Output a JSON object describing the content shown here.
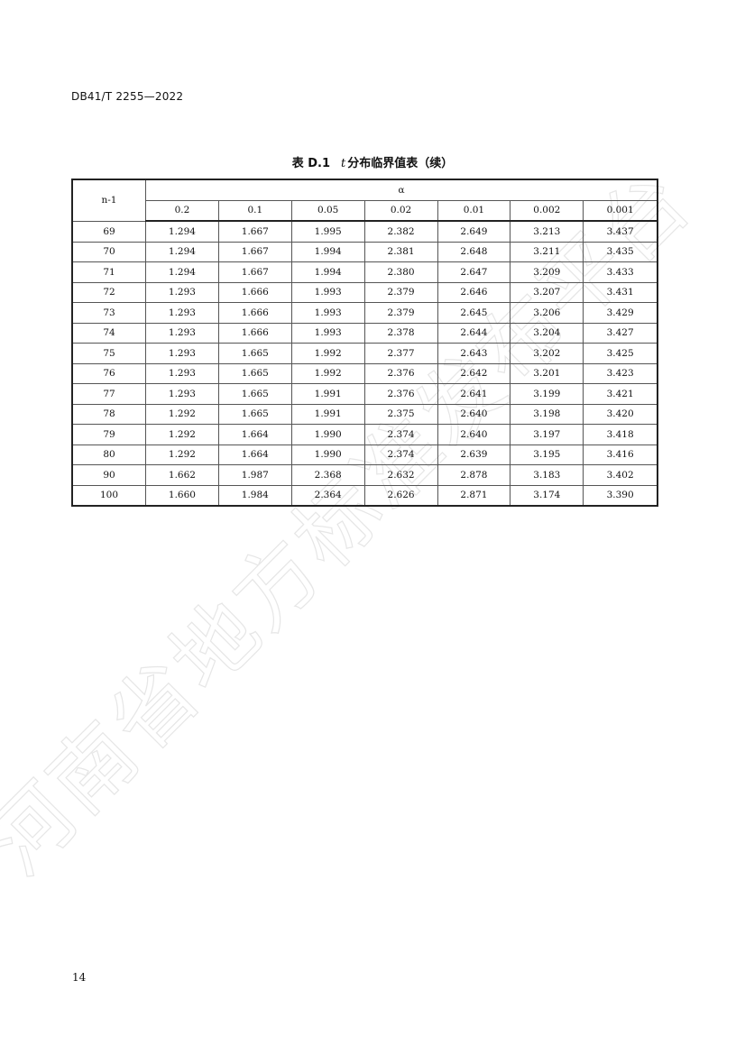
{
  "header": {
    "doc_code": "DB41/T 2255—2022"
  },
  "table": {
    "title_prefix": "表 D.1",
    "title_symbol": "t",
    "title_text": "分布临界值表（续）",
    "row_header": "n-1",
    "group_header": "α",
    "columns": [
      "0.2",
      "0.1",
      "0.05",
      "0.02",
      "0.01",
      "0.002",
      "0.001"
    ],
    "rows": [
      {
        "n": "69",
        "v": [
          "1.294",
          "1.667",
          "1.995",
          "2.382",
          "2.649",
          "3.213",
          "3.437"
        ]
      },
      {
        "n": "70",
        "v": [
          "1.294",
          "1.667",
          "1.994",
          "2.381",
          "2.648",
          "3.211",
          "3.435"
        ]
      },
      {
        "n": "71",
        "v": [
          "1.294",
          "1.667",
          "1.994",
          "2.380",
          "2.647",
          "3.209",
          "3.433"
        ]
      },
      {
        "n": "72",
        "v": [
          "1.293",
          "1.666",
          "1.993",
          "2.379",
          "2.646",
          "3.207",
          "3.431"
        ]
      },
      {
        "n": "73",
        "v": [
          "1.293",
          "1.666",
          "1.993",
          "2.379",
          "2.645",
          "3.206",
          "3.429"
        ]
      },
      {
        "n": "74",
        "v": [
          "1.293",
          "1.666",
          "1.993",
          "2.378",
          "2.644",
          "3.204",
          "3.427"
        ]
      },
      {
        "n": "75",
        "v": [
          "1.293",
          "1.665",
          "1.992",
          "2.377",
          "2.643",
          "3.202",
          "3.425"
        ]
      },
      {
        "n": "76",
        "v": [
          "1.293",
          "1.665",
          "1.992",
          "2.376",
          "2.642",
          "3.201",
          "3.423"
        ]
      },
      {
        "n": "77",
        "v": [
          "1.293",
          "1.665",
          "1.991",
          "2.376",
          "2.641",
          "3.199",
          "3.421"
        ]
      },
      {
        "n": "78",
        "v": [
          "1.292",
          "1.665",
          "1.991",
          "2.375",
          "2.640",
          "3.198",
          "3.420"
        ]
      },
      {
        "n": "79",
        "v": [
          "1.292",
          "1.664",
          "1.990",
          "2.374",
          "2.640",
          "3.197",
          "3.418"
        ]
      },
      {
        "n": "80",
        "v": [
          "1.292",
          "1.664",
          "1.990",
          "2.374",
          "2.639",
          "3.195",
          "3.416"
        ]
      },
      {
        "n": "90",
        "v": [
          "1.662",
          "1.987",
          "2.368",
          "2.632",
          "2.878",
          "3.183",
          "3.402"
        ]
      },
      {
        "n": "100",
        "v": [
          "1.660",
          "1.984",
          "2.364",
          "2.626",
          "2.871",
          "3.174",
          "3.390"
        ]
      }
    ]
  },
  "watermark": {
    "text": "河南省地方标准发布平台",
    "color": "#e6e6e6"
  },
  "footer": {
    "page_number": "14"
  }
}
